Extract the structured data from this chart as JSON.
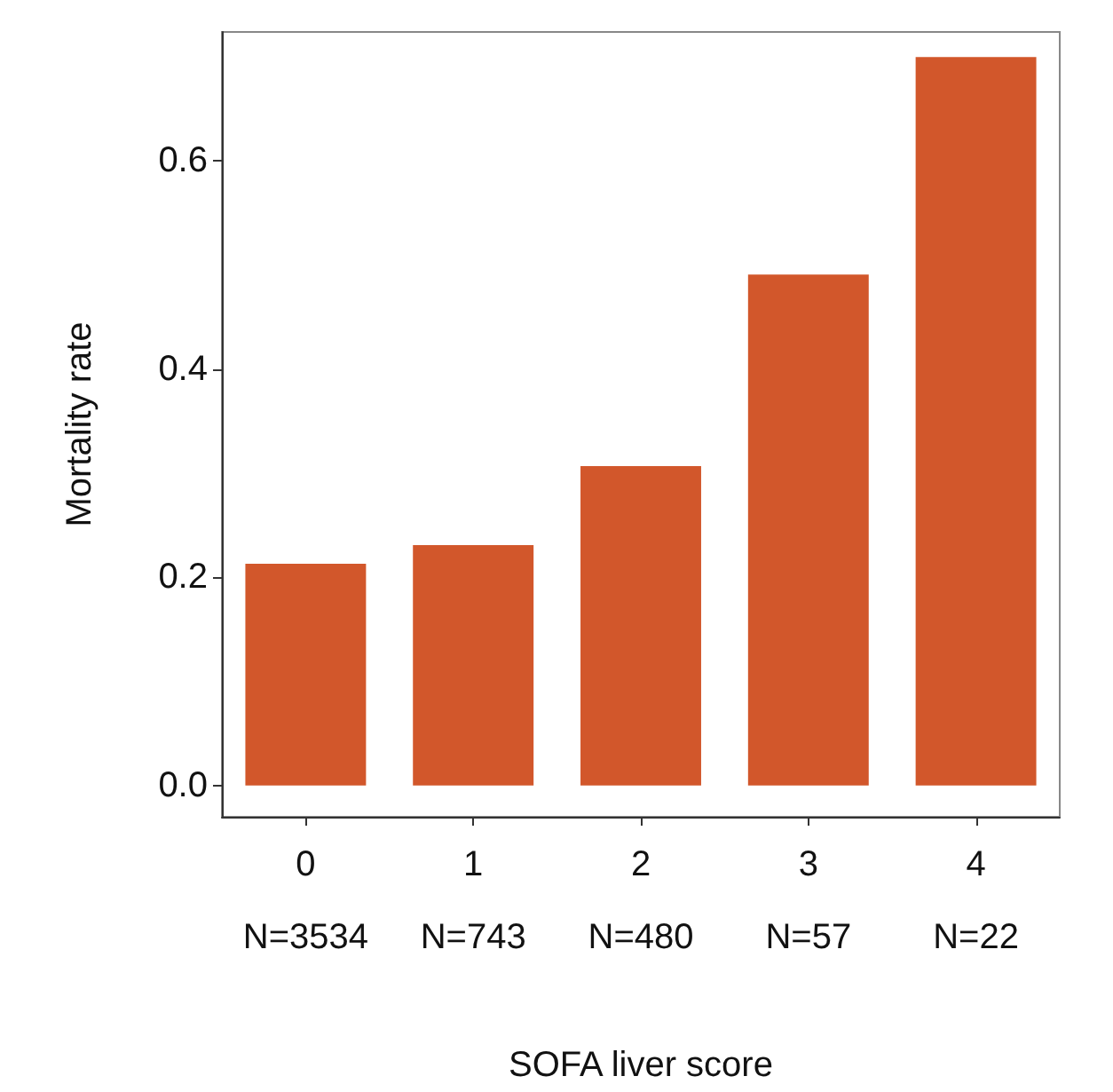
{
  "chart_data": {
    "type": "bar",
    "xlabel": "SOFA liver score",
    "ylabel": "Mortality rate",
    "categories": [
      "0",
      "1",
      "2",
      "3",
      "4"
    ],
    "annotations": [
      "N=3534",
      "N=743",
      "N=480",
      "N=57",
      "N=22"
    ],
    "values": [
      0.213,
      0.231,
      0.307,
      0.491,
      0.7
    ],
    "color": "#d2572b",
    "ylim": [
      -0.03,
      0.724
    ],
    "yticks": [
      {
        "value": 0,
        "label": "0.0"
      },
      {
        "value": 0.2,
        "label": "0.2"
      },
      {
        "value": 0.4,
        "label": "0.4"
      },
      {
        "value": 0.6,
        "label": "0.6"
      }
    ],
    "grid": false
  }
}
